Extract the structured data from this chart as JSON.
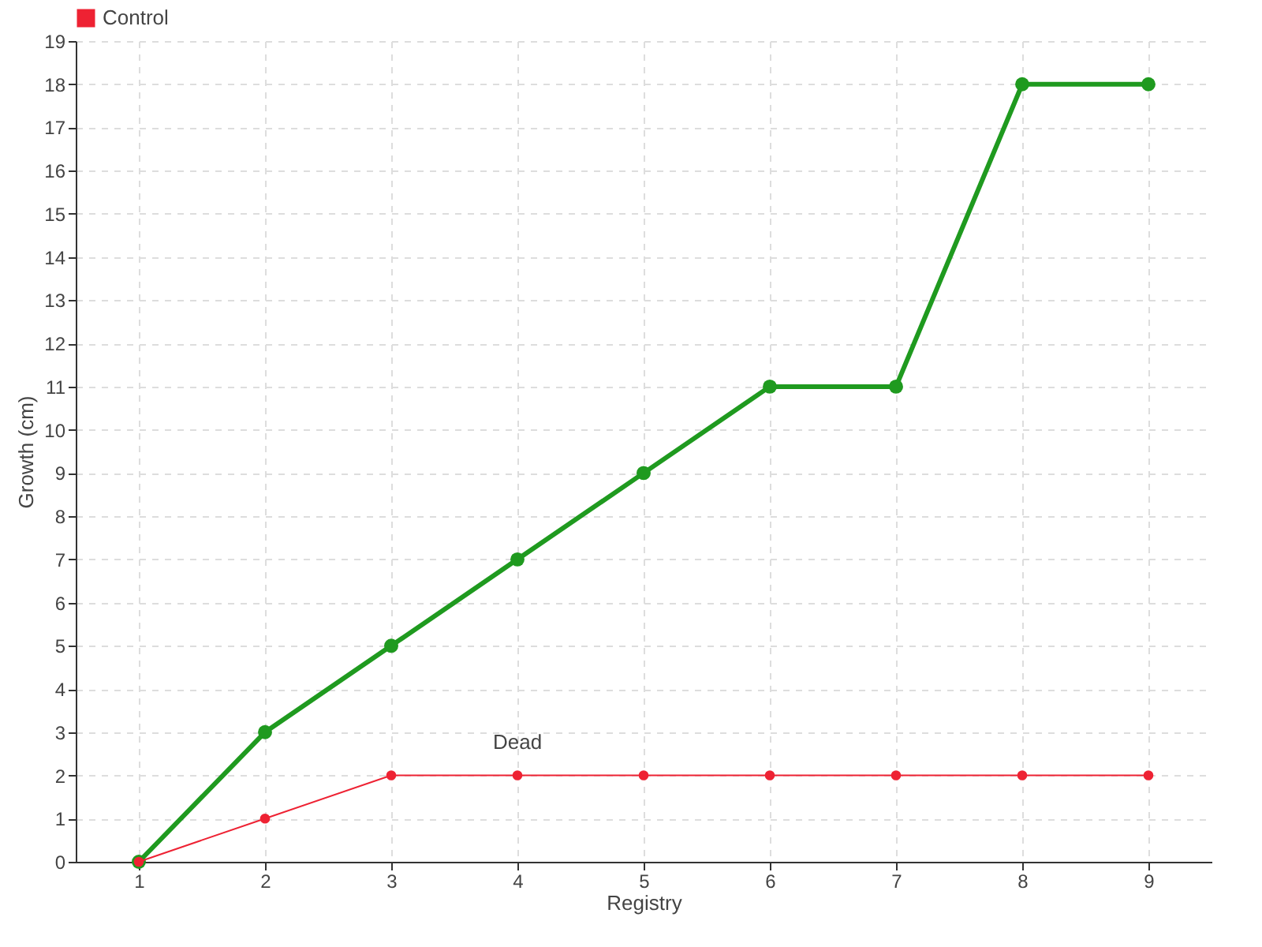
{
  "chart_data": {
    "type": "line",
    "xlabel": "Registry",
    "ylabel": "Growth (cm)",
    "categories": [
      "1",
      "2",
      "3",
      "4",
      "5",
      "6",
      "7",
      "8",
      "9"
    ],
    "series": [
      {
        "color": "#1f9a1f",
        "values": [
          0,
          3,
          5,
          7,
          9,
          11,
          11,
          18,
          18
        ]
      },
      {
        "name": "Control",
        "color": "#ee2233",
        "values": [
          0,
          1,
          2,
          2,
          2,
          2,
          2,
          2,
          2
        ]
      }
    ],
    "ylim": [
      0,
      19
    ],
    "yticks": [
      0,
      1,
      2,
      3,
      4,
      5,
      6,
      7,
      8,
      9,
      10,
      11,
      12,
      13,
      14,
      15,
      16,
      17,
      18,
      19
    ],
    "grid": true,
    "legend": "top left",
    "marker": "circle",
    "line_style": "solid",
    "annotations": [
      {
        "text": "Dead",
        "x": "4",
        "y": 2
      }
    ]
  }
}
